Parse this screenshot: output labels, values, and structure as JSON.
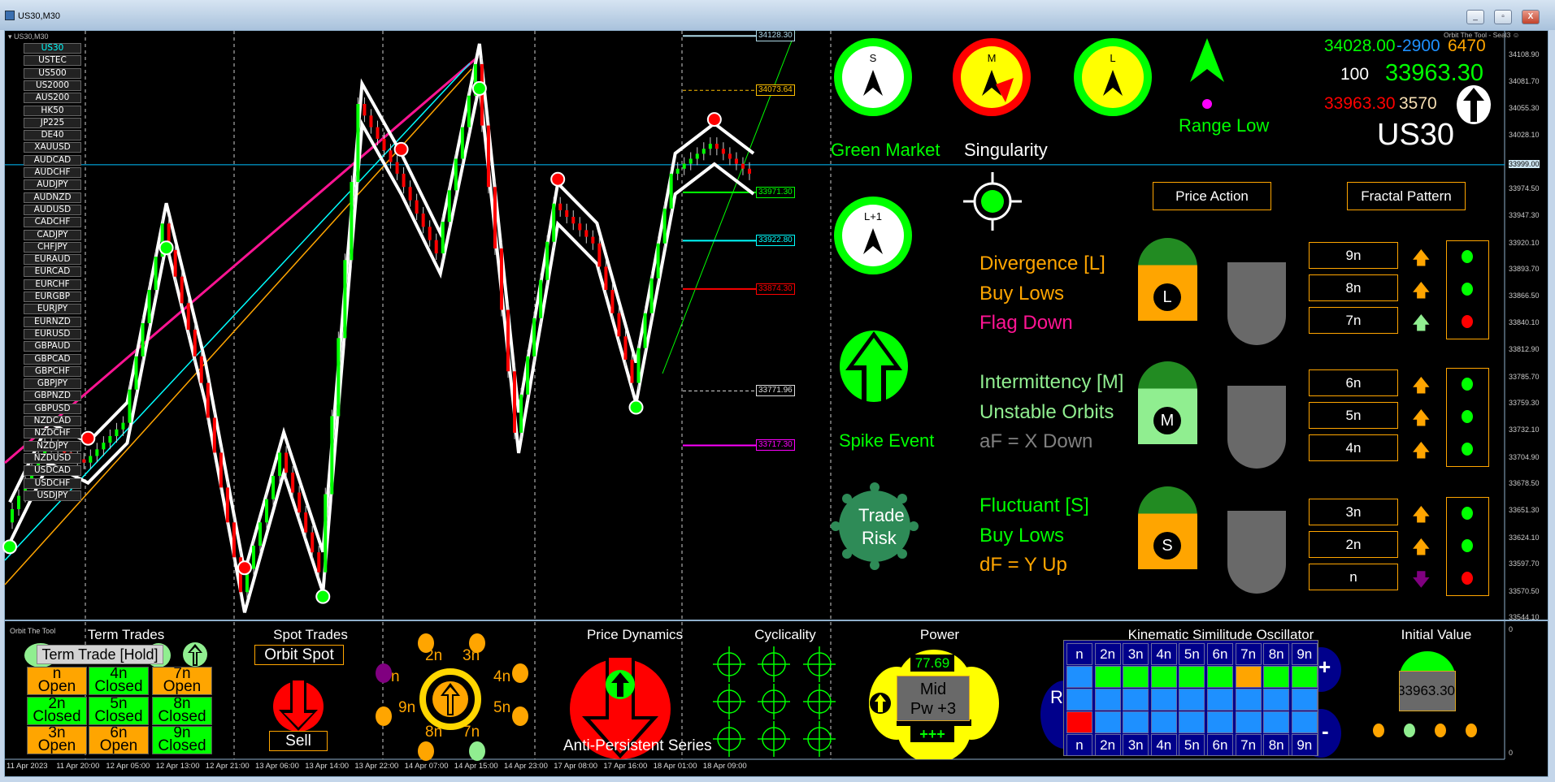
{
  "window": {
    "title": "US30,M30",
    "chart_label": "US30,M30",
    "minimize": "_",
    "restore": "▫",
    "close": "X",
    "watermark": "Orbit The Tool - Seal3 ☺"
  },
  "symbols": [
    "US30",
    "USTEC",
    "US500",
    "US2000",
    "AUS200",
    "HK50",
    "JP225",
    "DE40",
    "XAUUSD",
    "AUDCAD",
    "AUDCHF",
    "AUDJPY",
    "AUDNZD",
    "AUDUSD",
    "CADCHF",
    "CADJPY",
    "CHFJPY",
    "EURAUD",
    "EURCAD",
    "EURCHF",
    "EURGBP",
    "EURJPY",
    "EURNZD",
    "EURUSD",
    "GBPAUD",
    "GBPCAD",
    "GBPCHF",
    "GBPJPY",
    "GBPNZD",
    "GBPUSD",
    "NZDCAD",
    "NZDCHF",
    "NZDJPY",
    "NZDUSD",
    "USDCAD",
    "USDCHF",
    "USDJPY"
  ],
  "active_symbol": "US30",
  "price_axis": [
    "34108.90",
    "34081.70",
    "34055.30",
    "34028.10",
    "33999.00",
    "33974.50",
    "33947.30",
    "33920.10",
    "33893.70",
    "33866.50",
    "33840.10",
    "33812.90",
    "33785.70",
    "33759.30",
    "33732.10",
    "33704.90",
    "33678.50",
    "33651.30",
    "33624.10",
    "33597.70",
    "33570.50",
    "33544.10"
  ],
  "current_price": "33999.00",
  "price_levels": [
    {
      "label": "34128.30",
      "price": 34128.3,
      "color": "#add8e6",
      "style": "solid"
    },
    {
      "label": "34073.64",
      "price": 34073.64,
      "color": "#ffc000",
      "style": "dashed"
    },
    {
      "label": "33971.30",
      "price": 33971.3,
      "color": "#00ff00",
      "style": "solid"
    },
    {
      "label": "33922.80",
      "price": 33922.8,
      "color": "#00ffff",
      "style": "solid"
    },
    {
      "label": "33874.30",
      "price": 33874.3,
      "color": "#ff0000",
      "style": "solid"
    },
    {
      "label": "33771.96",
      "price": 33771.96,
      "color": "#dddddd",
      "style": "dashed"
    },
    {
      "label": "33717.30",
      "price": 33717.3,
      "color": "#ff00ff",
      "style": "solid"
    }
  ],
  "price_trace": [
    33640,
    33720,
    33700,
    33740,
    33940,
    33780,
    33570,
    33710,
    33590,
    34060,
    33990,
    33910,
    34100,
    33730,
    33960,
    33920,
    33780,
    33990,
    34020,
    33990
  ],
  "time_axis": [
    "11 Apr 2023",
    "11 Apr 20:00",
    "12 Apr 05:00",
    "12 Apr 13:00",
    "12 Apr 21:00",
    "13 Apr 06:00",
    "13 Apr 14:00",
    "13 Apr 22:00",
    "14 Apr 07:00",
    "14 Apr 15:00",
    "14 Apr 23:00",
    "17 Apr 08:00",
    "17 Apr 16:00",
    "18 Apr 01:00",
    "18 Apr 09:00"
  ],
  "panel": {
    "compass": [
      {
        "label": "S",
        "ring": "#00ff00",
        "fill": "#ffffff"
      },
      {
        "label": "M",
        "ring": "#ff0000",
        "fill": "#ffff00"
      },
      {
        "label": "L",
        "ring": "#00ff00",
        "fill": "#ffff00"
      },
      {
        "label": "L+1",
        "ring": "#00ff00",
        "fill": "#ffffff"
      }
    ],
    "range_text": "Range Low",
    "market_text": "Green Market",
    "singularity_text": "Singularity",
    "q1": "34028.00",
    "q2": "-2900",
    "q3": "6470",
    "q4": "100",
    "q5": "33963.30",
    "q6": "33963.30",
    "q7": "3570",
    "symbol": "US30",
    "price_action": "Price Action",
    "fractal_pattern": "Fractal Pattern",
    "spike_event": "Spike Event",
    "trade_risk_1": "Trade",
    "trade_risk_2": "Risk",
    "groups": [
      {
        "lines": [
          {
            "text": "Divergence [L]",
            "color": "#ffa500"
          },
          {
            "text": "Buy Lows",
            "color": "#ffa500"
          },
          {
            "text": "Flag Down",
            "color": "#ff1493"
          }
        ],
        "badge": "L",
        "body": "#ffa500",
        "rows": [
          {
            "n": "9n",
            "arrow": "up",
            "arrow_color": "#ffa500",
            "dot": "#00ff00"
          },
          {
            "n": "8n",
            "arrow": "up",
            "arrow_color": "#ffa500",
            "dot": "#00ff00"
          },
          {
            "n": "7n",
            "arrow": "up",
            "arrow_color": "#90ee90",
            "dot": "#ff0000"
          }
        ]
      },
      {
        "lines": [
          {
            "text": "Intermittency [M]",
            "color": "#90ee90"
          },
          {
            "text": "Unstable Orbits",
            "color": "#90ee90"
          },
          {
            "text": "aF = X Down",
            "color": "#808080"
          }
        ],
        "badge": "M",
        "body": "#90ee90",
        "rows": [
          {
            "n": "6n",
            "arrow": "up",
            "arrow_color": "#ffa500",
            "dot": "#00ff00"
          },
          {
            "n": "5n",
            "arrow": "up",
            "arrow_color": "#ffa500",
            "dot": "#00ff00"
          },
          {
            "n": "4n",
            "arrow": "up",
            "arrow_color": "#ffa500",
            "dot": "#00ff00"
          }
        ]
      },
      {
        "lines": [
          {
            "text": "Fluctuant [S]",
            "color": "#00ff00"
          },
          {
            "text": "Buy Lows",
            "color": "#00ff00"
          },
          {
            "text": "dF = Y Up",
            "color": "#ffa500"
          }
        ],
        "badge": "S",
        "body": "#ffa500",
        "rows": [
          {
            "n": "3n",
            "arrow": "up",
            "arrow_color": "#ffa500",
            "dot": "#00ff00"
          },
          {
            "n": "2n",
            "arrow": "up",
            "arrow_color": "#ffa500",
            "dot": "#00ff00"
          },
          {
            "n": "n",
            "arrow": "down",
            "arrow_color": "#800080",
            "dot": "#ff0000"
          }
        ]
      }
    ]
  },
  "sub": {
    "label": "Orbit The Tool",
    "term_title": "Term Trades",
    "term_hold": "Term Trade [Hold]",
    "term_cells": [
      [
        {
          "n": "n",
          "s": "Open",
          "c": "#ffa500"
        },
        {
          "n": "4n",
          "s": "Closed",
          "c": "#00ff00"
        },
        {
          "n": "7n",
          "s": "Open",
          "c": "#ffa500"
        }
      ],
      [
        {
          "n": "2n",
          "s": "Closed",
          "c": "#00ff00"
        },
        {
          "n": "5n",
          "s": "Closed",
          "c": "#00ff00"
        },
        {
          "n": "8n",
          "s": "Closed",
          "c": "#00ff00"
        }
      ],
      [
        {
          "n": "3n",
          "s": "Open",
          "c": "#ffa500"
        },
        {
          "n": "6n",
          "s": "Open",
          "c": "#ffa500"
        },
        {
          "n": "9n",
          "s": "Closed",
          "c": "#00ff00"
        }
      ]
    ],
    "spot_title": "Spot Trades",
    "orbit_spot": "Orbit Spot",
    "sell": "Sell",
    "orbit_labels": [
      "n",
      "2n",
      "3n",
      "4n",
      "5n",
      "7n",
      "8n",
      "9n"
    ],
    "dynamics_title": "Price Dynamics",
    "anti_persistent": "Anti-Persistent Series",
    "cyclicality_title": "Cyclicality",
    "power_title": "Power",
    "power_value": "77.69",
    "power_mid": "Mid",
    "power_pw": "Pw +3",
    "power_plus": "+++",
    "kso_title": "Kinematic Similitude Oscillator",
    "kso_headers": [
      "n",
      "2n",
      "3n",
      "4n",
      "5n",
      "6n",
      "7n",
      "8n",
      "9n"
    ],
    "kso_rows": [
      [
        "#1e90ff",
        "#00ff00",
        "#00ff00",
        "#00ff00",
        "#00ff00",
        "#00ff00",
        "#ffa500",
        "#00ff00",
        "#00ff00"
      ],
      [
        "#1e90ff",
        "#1e90ff",
        "#1e90ff",
        "#1e90ff",
        "#1e90ff",
        "#1e90ff",
        "#1e90ff",
        "#1e90ff",
        "#1e90ff"
      ],
      [
        "#ff0000",
        "#1e90ff",
        "#1e90ff",
        "#1e90ff",
        "#1e90ff",
        "#1e90ff",
        "#1e90ff",
        "#1e90ff",
        "#1e90ff"
      ]
    ],
    "kso_r": "R",
    "kso_plus": "+",
    "kso_minus": "-",
    "initial_title": "Initial Value",
    "initial_value": "33963.30",
    "initial_dots": [
      "#ffa500",
      "#90ee90",
      "#ffa500",
      "#ffa500"
    ],
    "axis_top": "0",
    "axis_bottom": "0"
  }
}
